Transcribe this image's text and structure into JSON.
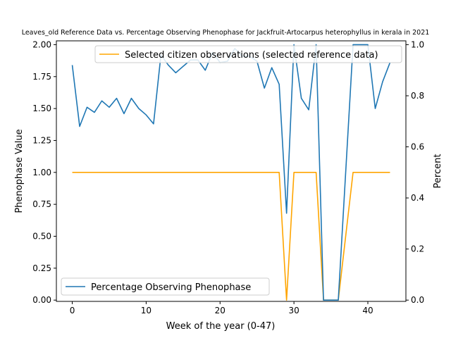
{
  "chart_data": {
    "type": "line",
    "title": "Leaves_old Reference Data vs. Percentage Observing Phenophase for Jackfruit-Artocarpus heterophyllus in kerala in 2021",
    "xlabel": "Week of the year (0-47)",
    "ylabel_left": "Phenophase Value",
    "ylabel_right": "Percent",
    "xlim": [
      -2.15,
      45.15
    ],
    "ylim_left": [
      -0.01,
      2.03
    ],
    "ylim_right": [
      -0.005,
      1.015
    ],
    "x_ticks": [
      0,
      10,
      20,
      30,
      40
    ],
    "y_ticks_left": [
      "0.00",
      "0.25",
      "0.50",
      "0.75",
      "1.00",
      "1.25",
      "1.50",
      "1.75",
      "2.00"
    ],
    "y_ticks_right": [
      "0.0",
      "0.2",
      "0.4",
      "0.6",
      "0.8",
      "1.0"
    ],
    "grid": false,
    "series": [
      {
        "name": "Selected citizen observations (selected reference data)",
        "axis": "left",
        "color": "#ffa500",
        "legend": "top-right",
        "x": [
          0,
          1,
          2,
          3,
          4,
          5,
          6,
          7,
          8,
          9,
          10,
          11,
          12,
          13,
          14,
          15,
          16,
          17,
          18,
          19,
          20,
          21,
          22,
          23,
          24,
          25,
          26,
          27,
          28,
          29,
          30,
          31,
          32,
          33,
          34,
          35,
          36,
          37,
          38,
          39,
          40,
          41,
          42,
          43
        ],
        "values": [
          1,
          1,
          1,
          1,
          1,
          1,
          1,
          1,
          1,
          1,
          1,
          1,
          1,
          1,
          1,
          1,
          1,
          1,
          1,
          1,
          1,
          1,
          1,
          1,
          1,
          1,
          1,
          1,
          1,
          0,
          1,
          1,
          1,
          1,
          0,
          0,
          0,
          0.5,
          1,
          1,
          1,
          1,
          1,
          1
        ]
      },
      {
        "name": "Percentage Observing Phenophase",
        "axis": "right",
        "color": "#1f77b4",
        "legend": "bottom-left",
        "x": [
          0,
          1,
          2,
          3,
          4,
          5,
          6,
          7,
          8,
          9,
          10,
          11,
          12,
          13,
          14,
          15,
          16,
          17,
          18,
          19,
          20,
          21,
          22,
          23,
          24,
          25,
          26,
          27,
          28,
          29,
          30,
          31,
          32,
          33,
          34,
          35,
          36,
          37,
          38,
          39,
          40,
          41,
          42,
          43
        ],
        "values": [
          0.92,
          0.68,
          0.755,
          0.735,
          0.78,
          0.755,
          0.79,
          0.73,
          0.79,
          0.75,
          0.725,
          0.69,
          0.96,
          0.92,
          0.89,
          0.915,
          0.94,
          0.94,
          0.9,
          0.97,
          0.93,
          0.935,
          0.985,
          0.955,
          0.955,
          0.935,
          0.83,
          0.91,
          0.845,
          0.34,
          1.0,
          0.79,
          0.745,
          1.0,
          0.0,
          0.0,
          0.0,
          0.5,
          1.0,
          1.0,
          1.0,
          0.75,
          0.855,
          0.93
        ]
      }
    ]
  }
}
